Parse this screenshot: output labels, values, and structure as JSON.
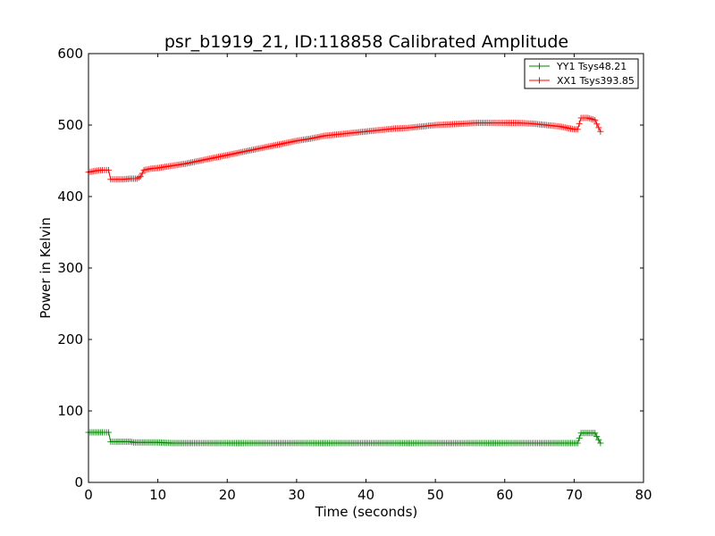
{
  "chart_data": {
    "type": "line",
    "title": "psr_b1919_21, ID:118858 Calibrated Amplitude",
    "xlabel": "Time (seconds)",
    "ylabel": "Power in Kelvin",
    "xlim": [
      0,
      80
    ],
    "ylim": [
      0,
      600
    ],
    "xticks": [
      "0",
      "10",
      "20",
      "30",
      "40",
      "50",
      "60",
      "70",
      "80"
    ],
    "yticks": [
      "0",
      "100",
      "200",
      "300",
      "400",
      "500",
      "600"
    ],
    "grid": false,
    "legend_position": "top-right",
    "series": [
      {
        "name": "YY1 Tsys48.21",
        "color": "#008000",
        "marker": "plus",
        "x": [
          0,
          1,
          2,
          2.9,
          3.2,
          4,
          5,
          6,
          6.5,
          7,
          8,
          9,
          10,
          12,
          15,
          20,
          25,
          30,
          35,
          40,
          45,
          50,
          55,
          60,
          65,
          67.5,
          68,
          69,
          70,
          70.5,
          71,
          72,
          73,
          73.8
        ],
        "y": [
          70,
          70,
          70,
          70,
          57,
          57,
          57,
          57,
          56,
          56,
          56,
          56,
          56,
          55,
          55,
          55,
          55,
          55,
          55,
          55,
          55,
          55,
          55,
          55,
          55,
          55,
          55,
          55,
          55,
          55,
          69,
          69,
          69,
          55
        ]
      },
      {
        "name": "XX1 Tsys393.85",
        "color": "#ff0000",
        "marker": "plus",
        "x": [
          0,
          1,
          2,
          2.9,
          3.2,
          4,
          5,
          6,
          7,
          7.5,
          8,
          9,
          10,
          12,
          14,
          16,
          18,
          20,
          22,
          24,
          26,
          28,
          30,
          32,
          34,
          36,
          38,
          40,
          42,
          44,
          46,
          48,
          50,
          52,
          54,
          56,
          58,
          60,
          62,
          64,
          66,
          68,
          69,
          70,
          70.5,
          71,
          72,
          73,
          73.8
        ],
        "y": [
          434,
          436,
          437,
          437,
          424,
          424,
          424,
          425,
          425,
          428,
          437,
          439,
          440,
          443,
          446,
          450,
          454,
          458,
          462,
          466,
          470,
          474,
          478,
          481,
          485,
          487,
          489,
          491,
          493,
          495,
          496,
          498,
          500,
          501,
          502,
          503,
          503,
          503,
          503,
          502,
          500,
          498,
          496,
          494,
          494,
          510,
          510,
          507,
          491
        ]
      }
    ]
  }
}
